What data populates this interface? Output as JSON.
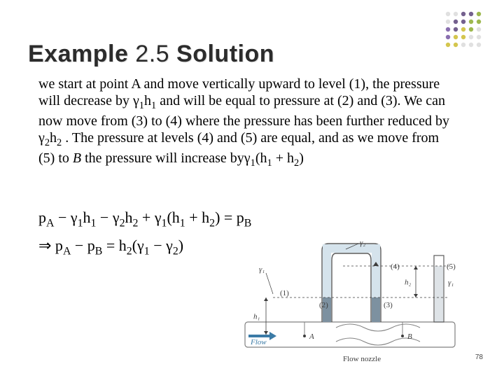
{
  "title": {
    "parts": [
      {
        "text": "Example",
        "bold": true
      },
      {
        "text": " 2.5 ",
        "bold": false
      },
      {
        "text": "Solution",
        "bold": true
      }
    ],
    "fontsize": 34,
    "color": "#2c2c2c",
    "font_family": "Arial"
  },
  "body": {
    "text_html": "we start at point A and move vertically upward to level (1), the pressure will decrease by γ<sub>1</sub>h<sub>1</sub> and will be equal to pressure at (2) and (3). We can now move from (3) to (4) where the pressure has been further reduced by γ<sub>2</sub>h<sub>2</sub> . The pressure at levels (4) and (5) are equal, and as we move from (5) to <i>B</i> the pressure will increase byγ<sub>1</sub>(h<sub>1</sub> + h<sub>2</sub>)",
    "fontsize": 20,
    "color": "#000000",
    "font_family": "Times New Roman"
  },
  "equations": {
    "line1": "p<sub>A</sub> − γ<sub>1</sub>h<sub>1</sub> − γ<sub>2</sub>h<sub>2</sub> + γ<sub>1</sub>(h<sub>1</sub> + h<sub>2</sub>) = p<sub>B</sub>",
    "line2": "⇒ p<sub>A</sub> − p<sub>B</sub> = h<sub>2</sub>(γ<sub>1</sub> − γ<sub>2</sub>)",
    "fontsize": 22,
    "color": "#000000"
  },
  "diagram": {
    "type": "schematic",
    "colors": {
      "tube_outline": "#5a5a5a",
      "fluid_dark": "#7d91a0",
      "fluid_light": "#d5e3ec",
      "text": "#3c3c3c",
      "flow_arrow": "#3b7ba6",
      "pipe_outline": "#808080",
      "pipe_fill": "#ffffff"
    },
    "labels": {
      "gamma1_left": "γ₁",
      "gamma2": "γ₂",
      "gamma1_right": "γ₁",
      "p1": "(1)",
      "p2": "(2)",
      "p3": "(3)",
      "p4": "(4)",
      "p5": "(5)",
      "A": "A",
      "B": "B",
      "h1": "h₁",
      "h2": "h₂",
      "flow": "Flow",
      "flow_nozzle": "Flow nozzle"
    },
    "font_size_labels": 11
  },
  "page_number": {
    "text": "78",
    "fontsize": 10,
    "color": "#444444"
  },
  "corner_dots": {
    "grid": 5,
    "spacing": 11,
    "radius": 3.2,
    "colors": {
      "c1": "#9db84f",
      "c2": "#d4c64e",
      "c3": "#74608e",
      "c4": "#8a6fb0",
      "c5": "#e0e0e0"
    },
    "pattern": [
      [
        "c5",
        "c5",
        "c3",
        "c3",
        "c1"
      ],
      [
        "c5",
        "c3",
        "c3",
        "c1",
        "c1"
      ],
      [
        "c4",
        "c3",
        "c2",
        "c1",
        "c5"
      ],
      [
        "c4",
        "c2",
        "c2",
        "c5",
        "c5"
      ],
      [
        "c2",
        "c2",
        "c5",
        "c5",
        "c5"
      ]
    ]
  }
}
